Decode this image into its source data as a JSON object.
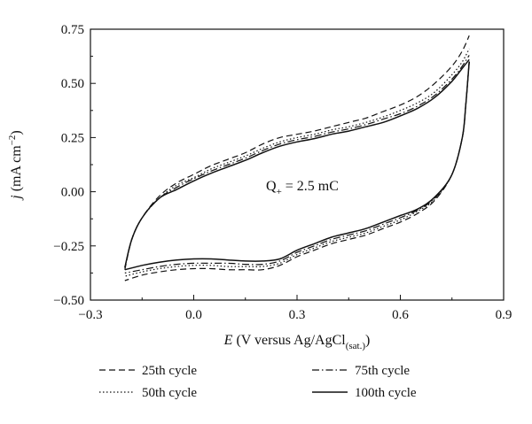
{
  "chart_data": {
    "type": "line",
    "title": "",
    "xlabel": {
      "symbol": "E",
      "text": " (V versus Ag/AgCl",
      "sub": "(sat.)",
      "close": ")"
    },
    "ylabel": {
      "symbol": "j",
      "text": " (mA cm",
      "sup": "−2",
      "close": ")"
    },
    "xlim": [
      -0.3,
      0.9
    ],
    "ylim": [
      -0.5,
      0.75
    ],
    "xticks": [
      -0.3,
      0.0,
      0.3,
      0.6,
      0.9
    ],
    "xtick_labels": [
      "−0.3",
      "0.0",
      "0.3",
      "0.6",
      "0.9"
    ],
    "yticks": [
      -0.5,
      -0.25,
      0.0,
      0.25,
      0.5,
      0.75
    ],
    "ytick_labels": [
      "−0.50",
      "−0.25",
      "0.00",
      "0.25",
      "0.50",
      "0.75"
    ],
    "grid": false,
    "legend_position": "below",
    "annotation": {
      "main": "Q",
      "sub": "+",
      "rest": " = 2.5 mC",
      "x": 0.35,
      "y": 0.0
    },
    "series": [
      {
        "name": "25th cycle",
        "style": "dashed",
        "anodic": {
          "x": [
            -0.2,
            -0.18,
            -0.15,
            -0.1,
            -0.05,
            0.0,
            0.05,
            0.1,
            0.15,
            0.2,
            0.25,
            0.3,
            0.35,
            0.4,
            0.45,
            0.5,
            0.55,
            0.6,
            0.65,
            0.7,
            0.75,
            0.78,
            0.8
          ],
          "y": [
            -0.36,
            -0.22,
            -0.12,
            -0.02,
            0.04,
            0.08,
            0.12,
            0.15,
            0.18,
            0.22,
            0.25,
            0.265,
            0.28,
            0.3,
            0.32,
            0.34,
            0.37,
            0.4,
            0.44,
            0.5,
            0.58,
            0.65,
            0.72
          ]
        },
        "cathodic": {
          "x": [
            0.8,
            0.79,
            0.78,
            0.75,
            0.7,
            0.65,
            0.6,
            0.55,
            0.5,
            0.45,
            0.4,
            0.35,
            0.3,
            0.25,
            0.2,
            0.15,
            0.1,
            0.05,
            0.0,
            -0.05,
            -0.1,
            -0.15,
            -0.2
          ],
          "y": [
            0.6,
            0.4,
            0.25,
            0.08,
            -0.04,
            -0.1,
            -0.14,
            -0.17,
            -0.2,
            -0.22,
            -0.24,
            -0.27,
            -0.3,
            -0.34,
            -0.36,
            -0.36,
            -0.36,
            -0.355,
            -0.355,
            -0.36,
            -0.37,
            -0.385,
            -0.41
          ]
        }
      },
      {
        "name": "50th cycle",
        "style": "dotted",
        "anodic": {
          "x": [
            -0.2,
            -0.18,
            -0.15,
            -0.1,
            -0.05,
            0.0,
            0.05,
            0.1,
            0.15,
            0.2,
            0.25,
            0.3,
            0.35,
            0.4,
            0.45,
            0.5,
            0.55,
            0.6,
            0.65,
            0.7,
            0.75,
            0.78,
            0.8
          ],
          "y": [
            -0.35,
            -0.22,
            -0.12,
            -0.03,
            0.03,
            0.065,
            0.105,
            0.135,
            0.165,
            0.2,
            0.23,
            0.25,
            0.265,
            0.285,
            0.3,
            0.32,
            0.345,
            0.375,
            0.41,
            0.46,
            0.54,
            0.6,
            0.66
          ]
        },
        "cathodic": {
          "x": [
            0.8,
            0.79,
            0.78,
            0.75,
            0.7,
            0.65,
            0.6,
            0.55,
            0.5,
            0.45,
            0.4,
            0.35,
            0.3,
            0.25,
            0.2,
            0.15,
            0.1,
            0.05,
            0.0,
            -0.05,
            -0.1,
            -0.15,
            -0.2
          ],
          "y": [
            0.6,
            0.4,
            0.25,
            0.08,
            -0.035,
            -0.09,
            -0.13,
            -0.16,
            -0.19,
            -0.21,
            -0.23,
            -0.26,
            -0.29,
            -0.33,
            -0.345,
            -0.345,
            -0.345,
            -0.34,
            -0.34,
            -0.345,
            -0.355,
            -0.37,
            -0.39
          ]
        }
      },
      {
        "name": "75th cycle",
        "style": "dashdot",
        "anodic": {
          "x": [
            -0.2,
            -0.18,
            -0.15,
            -0.1,
            -0.05,
            0.0,
            0.05,
            0.1,
            0.15,
            0.2,
            0.25,
            0.3,
            0.35,
            0.4,
            0.45,
            0.5,
            0.55,
            0.6,
            0.65,
            0.7,
            0.75,
            0.78,
            0.8
          ],
          "y": [
            -0.35,
            -0.22,
            -0.12,
            -0.03,
            0.02,
            0.06,
            0.095,
            0.125,
            0.155,
            0.19,
            0.22,
            0.24,
            0.255,
            0.275,
            0.29,
            0.31,
            0.335,
            0.36,
            0.395,
            0.445,
            0.52,
            0.58,
            0.63
          ]
        },
        "cathodic": {
          "x": [
            0.8,
            0.79,
            0.78,
            0.75,
            0.7,
            0.65,
            0.6,
            0.55,
            0.5,
            0.45,
            0.4,
            0.35,
            0.3,
            0.25,
            0.2,
            0.15,
            0.1,
            0.05,
            0.0,
            -0.05,
            -0.1,
            -0.15,
            -0.2
          ],
          "y": [
            0.6,
            0.4,
            0.25,
            0.08,
            -0.03,
            -0.085,
            -0.12,
            -0.15,
            -0.18,
            -0.2,
            -0.22,
            -0.25,
            -0.28,
            -0.32,
            -0.335,
            -0.335,
            -0.33,
            -0.33,
            -0.33,
            -0.335,
            -0.345,
            -0.36,
            -0.375
          ]
        }
      },
      {
        "name": "100th cycle",
        "style": "solid",
        "anodic": {
          "x": [
            -0.2,
            -0.18,
            -0.15,
            -0.1,
            -0.05,
            0.0,
            0.05,
            0.1,
            0.15,
            0.2,
            0.25,
            0.3,
            0.35,
            0.4,
            0.45,
            0.5,
            0.55,
            0.6,
            0.65,
            0.7,
            0.75,
            0.78,
            0.8
          ],
          "y": [
            -0.35,
            -0.22,
            -0.12,
            -0.03,
            0.01,
            0.05,
            0.085,
            0.115,
            0.145,
            0.18,
            0.21,
            0.23,
            0.245,
            0.265,
            0.28,
            0.3,
            0.32,
            0.35,
            0.385,
            0.435,
            0.51,
            0.57,
            0.61
          ]
        },
        "cathodic": {
          "x": [
            0.8,
            0.79,
            0.78,
            0.75,
            0.7,
            0.65,
            0.6,
            0.55,
            0.5,
            0.45,
            0.4,
            0.35,
            0.3,
            0.25,
            0.2,
            0.15,
            0.1,
            0.05,
            0.0,
            -0.05,
            -0.1,
            -0.15,
            -0.2
          ],
          "y": [
            0.6,
            0.4,
            0.25,
            0.08,
            -0.025,
            -0.08,
            -0.11,
            -0.14,
            -0.17,
            -0.19,
            -0.21,
            -0.24,
            -0.27,
            -0.31,
            -0.32,
            -0.32,
            -0.315,
            -0.31,
            -0.31,
            -0.315,
            -0.325,
            -0.34,
            -0.36
          ]
        }
      }
    ]
  },
  "colors": {
    "line": "#111111",
    "axis": "#111111",
    "background": "#ffffff"
  }
}
